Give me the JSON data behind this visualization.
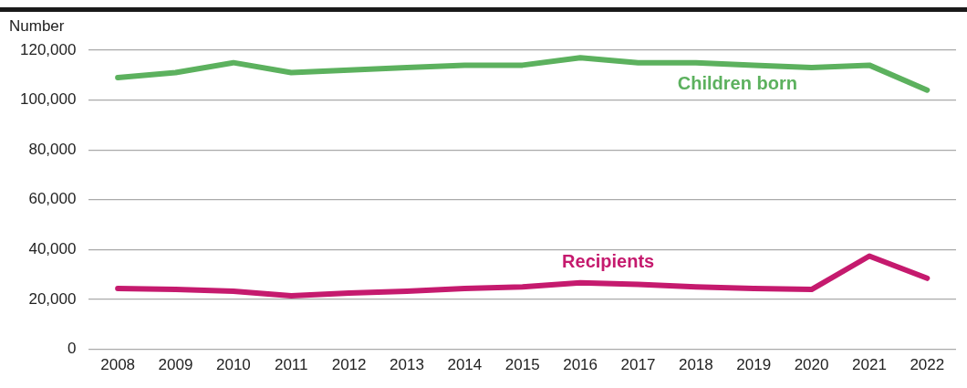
{
  "chart_data": {
    "type": "line",
    "ylabel": "Number",
    "categories": [
      "2008",
      "2009",
      "2010",
      "2011",
      "2012",
      "2013",
      "2014",
      "2015",
      "2016",
      "2017",
      "2018",
      "2019",
      "2020",
      "2021",
      "2022"
    ],
    "series": [
      {
        "name": "Children born",
        "color": "#5cb15e",
        "values": [
          109000,
          111000,
          115000,
          111000,
          112000,
          113000,
          114000,
          114000,
          117000,
          115000,
          115000,
          114000,
          113000,
          114000,
          104000
        ]
      },
      {
        "name": "Recipients",
        "color": "#c51a6e",
        "values": [
          24400,
          24000,
          23300,
          21500,
          22600,
          23300,
          24400,
          25000,
          26700,
          26000,
          25000,
          24400,
          24000,
          37400,
          28500
        ]
      }
    ],
    "ylim": [
      0,
      120000
    ],
    "yticks": [
      0,
      {
        "value": 20000,
        "label": "20,000"
      },
      {
        "value": 40000,
        "label": "40,000"
      },
      {
        "value": 60000,
        "label": "60,000"
      },
      {
        "value": 80000,
        "label": "80,000"
      },
      {
        "value": 100000,
        "label": "100,000"
      },
      {
        "value": 120000,
        "label": "120,000"
      }
    ],
    "grid": "y",
    "legend": false,
    "marker": "none",
    "line_style": "solid"
  }
}
